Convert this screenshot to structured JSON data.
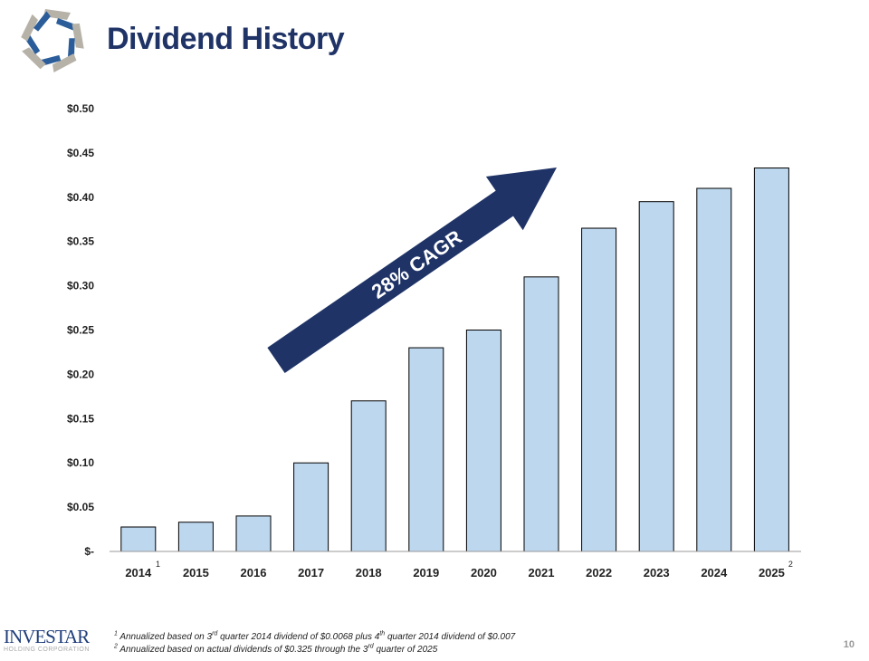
{
  "header": {
    "title": "Dividend History"
  },
  "logo": {
    "text": "INVESTAR",
    "subtext": "HOLDING CORPORATION"
  },
  "page_number": "10",
  "footnotes": [
    {
      "marker": "1",
      "parts": [
        "Annualized based on 3",
        "rd",
        " quarter 2014 dividend of $0.0068 plus 4",
        "th",
        " quarter 2014 dividend of $0.007"
      ]
    },
    {
      "marker": "2",
      "parts": [
        "Annualized based on actual dividends of $0.325 through the 3",
        "rd",
        " quarter of 2025"
      ]
    }
  ],
  "chart_data": {
    "type": "bar",
    "title": "",
    "categories": [
      "2014",
      "2015",
      "2016",
      "2017",
      "2018",
      "2019",
      "2020",
      "2021",
      "2022",
      "2023",
      "2024",
      "2025"
    ],
    "category_superscripts": {
      "2014": "1",
      "2025": "2"
    },
    "values": [
      0.0276,
      0.033,
      0.04,
      0.1,
      0.17,
      0.23,
      0.25,
      0.31,
      0.365,
      0.395,
      0.41,
      0.433
    ],
    "ylim": [
      0,
      0.5
    ],
    "yticks": [
      0,
      0.05,
      0.1,
      0.15,
      0.2,
      0.25,
      0.3,
      0.35,
      0.4,
      0.45,
      0.5
    ],
    "ytick_labels": [
      "$-",
      "$0.05",
      "$0.10",
      "$0.15",
      "$0.20",
      "$0.25",
      "$0.30",
      "$0.35",
      "$0.40",
      "$0.45",
      "$0.50"
    ],
    "grid": false,
    "bar_color": "#bdd7ee",
    "annotation": {
      "text": "28% CAGR",
      "color": "#1f3366",
      "shape": "arrow"
    }
  }
}
